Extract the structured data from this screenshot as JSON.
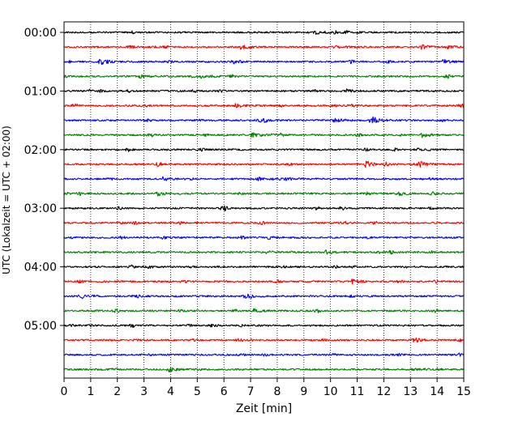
{
  "chart_data": {
    "type": "line",
    "subtype": "helicorder-seismogram",
    "title": "",
    "xlabel": "Zeit  [min]",
    "ylabel": "UTC (Lokalzeit = UTC + 02:00)",
    "xlim": [
      0,
      15
    ],
    "x_ticks": [
      "0",
      "1",
      "2",
      "3",
      "4",
      "5",
      "6",
      "7",
      "8",
      "9",
      "10",
      "11",
      "12",
      "13",
      "14",
      "15"
    ],
    "y_ticks": [
      "00:00",
      "01:00",
      "02:00",
      "03:00",
      "04:00",
      "05:00"
    ],
    "y_tick_rows": [
      0,
      4,
      8,
      12,
      16,
      20
    ],
    "traces_per_hour": 4,
    "trace_count": 24,
    "trace_minutes": 15,
    "trace_colors": [
      "#000000",
      "#ff0000",
      "#0000ff",
      "#008000"
    ],
    "grid": "vertical dotted lines at each minute",
    "events": [
      {
        "row": 1,
        "minute": 6.6,
        "amp": 1.0
      },
      {
        "row": 1,
        "minute": 13.4,
        "amp": 0.9
      },
      {
        "row": 1,
        "minute": 14.3,
        "amp": 0.9
      },
      {
        "row": 2,
        "minute": 1.3,
        "amp": 0.9
      },
      {
        "row": 2,
        "minute": 6.3,
        "amp": 0.7
      },
      {
        "row": 2,
        "minute": 14.2,
        "amp": 0.8
      },
      {
        "row": 3,
        "minute": 2.8,
        "amp": 0.6
      },
      {
        "row": 3,
        "minute": 5.1,
        "amp": 0.6
      },
      {
        "row": 4,
        "minute": 10.6,
        "amp": 0.6
      },
      {
        "row": 5,
        "minute": 6.4,
        "amp": 0.6
      },
      {
        "row": 6,
        "minute": 11.5,
        "amp": 1.8
      },
      {
        "row": 6,
        "minute": 10.1,
        "amp": 0.7
      },
      {
        "row": 7,
        "minute": 7.0,
        "amp": 0.9
      },
      {
        "row": 7,
        "minute": 13.4,
        "amp": 0.9
      },
      {
        "row": 9,
        "minute": 11.3,
        "amp": 1.2
      },
      {
        "row": 9,
        "minute": 13.3,
        "amp": 1.1
      },
      {
        "row": 10,
        "minute": 3.7,
        "amp": 0.7
      },
      {
        "row": 10,
        "minute": 8.3,
        "amp": 0.6
      },
      {
        "row": 11,
        "minute": 3.5,
        "amp": 0.8
      },
      {
        "row": 11,
        "minute": 12.5,
        "amp": 0.7
      },
      {
        "row": 15,
        "minute": 9.8,
        "amp": 0.9
      },
      {
        "row": 16,
        "minute": 8.0,
        "amp": 0.6
      },
      {
        "row": 17,
        "minute": 10.8,
        "amp": 0.7
      },
      {
        "row": 18,
        "minute": 6.8,
        "amp": 0.9
      },
      {
        "row": 19,
        "minute": 7.1,
        "amp": 0.6
      },
      {
        "row": 20,
        "minute": 5.4,
        "amp": 0.6
      },
      {
        "row": 21,
        "minute": 13.1,
        "amp": 1.0
      },
      {
        "row": 23,
        "minute": 3.9,
        "amp": 0.9
      }
    ]
  }
}
